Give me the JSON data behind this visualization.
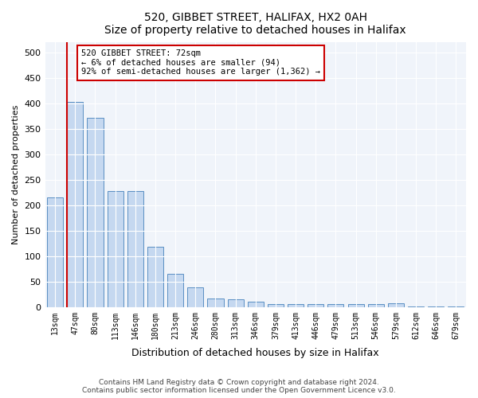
{
  "title1": "520, GIBBET STREET, HALIFAX, HX2 0AH",
  "title2": "Size of property relative to detached houses in Halifax",
  "xlabel": "Distribution of detached houses by size in Halifax",
  "ylabel": "Number of detached properties",
  "bar_labels": [
    "13sqm",
    "47sqm",
    "80sqm",
    "113sqm",
    "146sqm",
    "180sqm",
    "213sqm",
    "246sqm",
    "280sqm",
    "313sqm",
    "346sqm",
    "379sqm",
    "413sqm",
    "446sqm",
    "479sqm",
    "513sqm",
    "546sqm",
    "579sqm",
    "612sqm",
    "646sqm",
    "679sqm"
  ],
  "bar_values": [
    215,
    403,
    372,
    228,
    228,
    118,
    65,
    38,
    17,
    15,
    11,
    6,
    6,
    6,
    6,
    6,
    6,
    7,
    1,
    1,
    1
  ],
  "bar_color": "#c5d8f0",
  "bar_edge_color": "#5a8fc3",
  "vline_x": 1,
  "vline_color": "#cc0000",
  "annotation_text": "520 GIBBET STREET: 72sqm\n← 6% of detached houses are smaller (94)\n92% of semi-detached houses are larger (1,362) →",
  "annotation_box_color": "#ffffff",
  "annotation_box_edge": "#cc0000",
  "ylim": [
    0,
    520
  ],
  "yticks": [
    0,
    50,
    100,
    150,
    200,
    250,
    300,
    350,
    400,
    450,
    500
  ],
  "footer": "Contains HM Land Registry data © Crown copyright and database right 2024.\nContains public sector information licensed under the Open Government Licence v3.0.",
  "bg_color": "#f0f4fa"
}
